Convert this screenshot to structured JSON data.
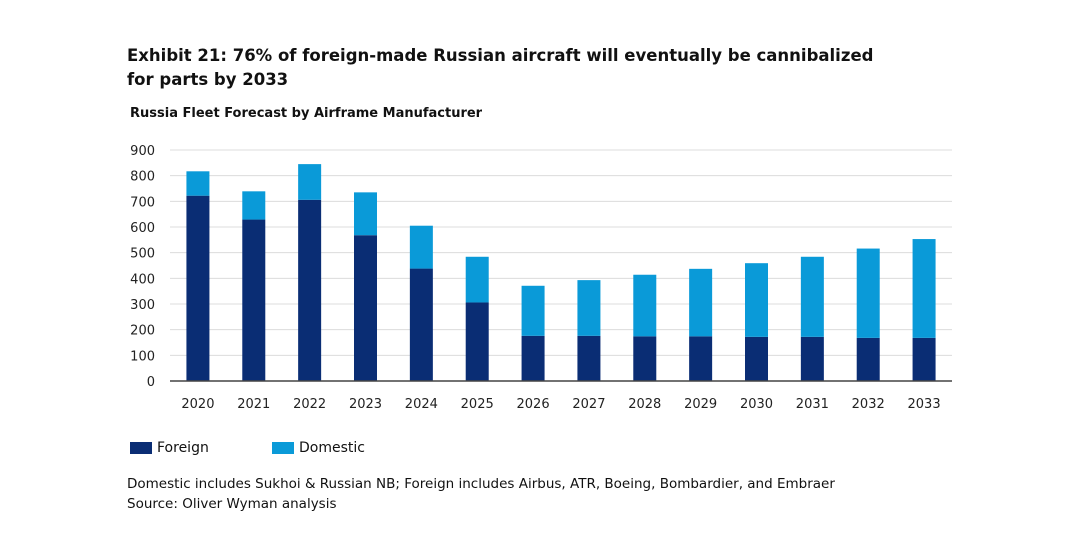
{
  "chart_data": {
    "type": "bar",
    "stacked": true,
    "title": "Exhibit 21: 76% of foreign-made Russian aircraft will eventually be cannibalized for parts by 2033",
    "subtitle": "Russia Fleet Forecast by Airframe Manufacturer",
    "xlabel": "",
    "ylabel": "",
    "ylim": [
      0,
      900
    ],
    "yticks": [
      0,
      100,
      200,
      300,
      400,
      500,
      600,
      700,
      800,
      900
    ],
    "grid": true,
    "legend_position": "bottom-left",
    "categories": [
      "2020",
      "2021",
      "2022",
      "2023",
      "2024",
      "2025",
      "2026",
      "2027",
      "2028",
      "2029",
      "2030",
      "2031",
      "2032",
      "2033"
    ],
    "series": [
      {
        "name": "Foreign",
        "color": "#0a2d74",
        "values": [
          722,
          629,
          706,
          568,
          438,
          306,
          176,
          176,
          174,
          174,
          172,
          172,
          168,
          168
        ]
      },
      {
        "name": "Domestic",
        "color": "#0a9ad8",
        "values": [
          95,
          110,
          139,
          167,
          167,
          178,
          195,
          217,
          240,
          263,
          287,
          312,
          348,
          385
        ]
      }
    ]
  },
  "notes": {
    "line1": "Domestic includes Sukhoi & Russian NB; Foreign includes Airbus, ATR, Boeing, Bombardier, and Embraer",
    "line2": "Source: Oliver Wyman analysis"
  }
}
